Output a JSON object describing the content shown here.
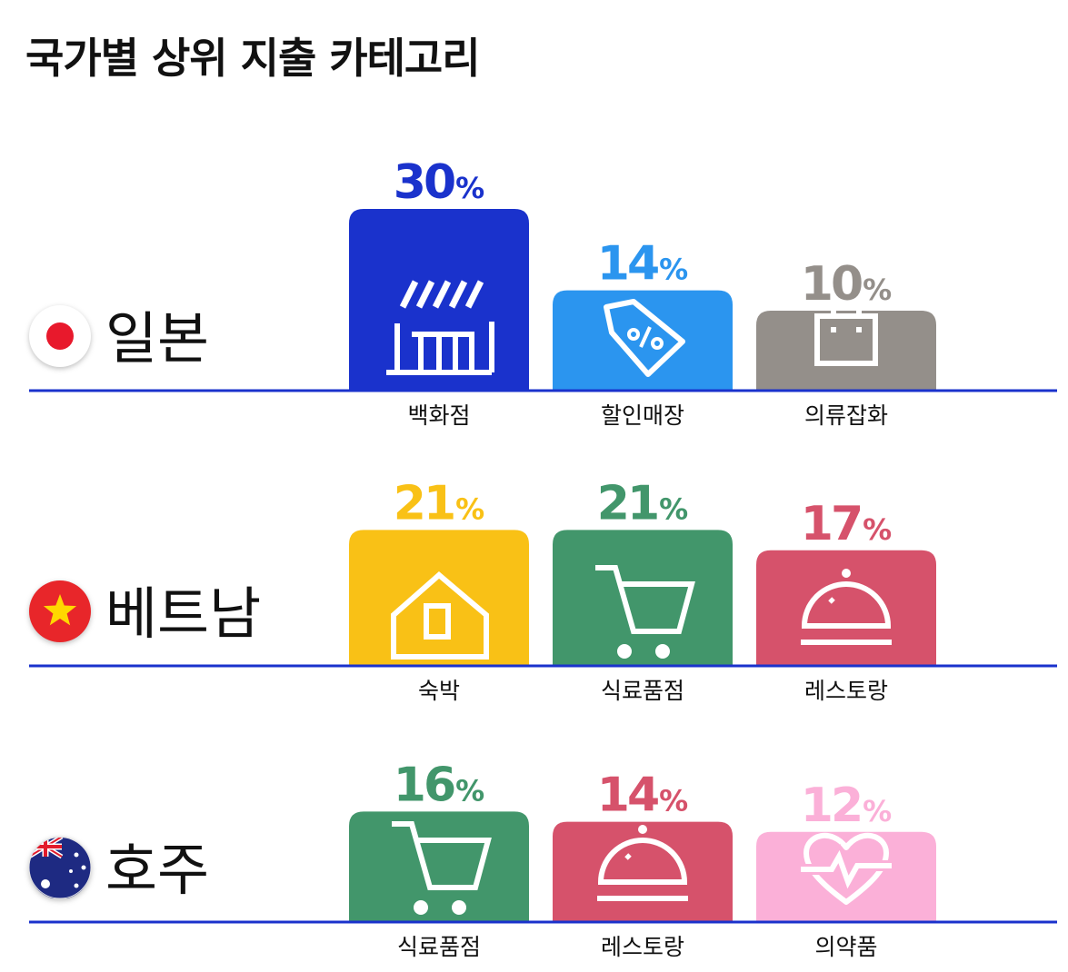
{
  "title": "국가별 상위 지출 카테고리",
  "chart_data": [
    {
      "type": "bar",
      "country": "일본",
      "flag": "japan-flag",
      "categories": [
        "백화점",
        "할인매장",
        "의류잡화"
      ],
      "values": [
        30,
        14,
        10
      ],
      "unit": "%",
      "colors": [
        "#1a32cc",
        "#2b95ef",
        "#948f8a"
      ],
      "icons": [
        "store-awning-icon",
        "discount-tag-icon",
        "shopping-bag-icon"
      ]
    },
    {
      "type": "bar",
      "country": "베트남",
      "flag": "vietnam-flag",
      "categories": [
        "숙박",
        "식료품점",
        "레스토랑"
      ],
      "values": [
        21,
        21,
        17
      ],
      "unit": "%",
      "colors": [
        "#f9c116",
        "#42966b",
        "#d6526b"
      ],
      "icons": [
        "house-icon",
        "shopping-cart-icon",
        "food-cloche-icon"
      ]
    },
    {
      "type": "bar",
      "country": "호주",
      "flag": "australia-flag",
      "categories": [
        "식료품점",
        "레스토랑",
        "의약품"
      ],
      "values": [
        16,
        14,
        12
      ],
      "unit": "%",
      "colors": [
        "#42966b",
        "#d6526b",
        "#fbb0d8"
      ],
      "icons": [
        "shopping-cart-icon",
        "food-cloche-icon",
        "heart-pulse-icon"
      ]
    }
  ]
}
